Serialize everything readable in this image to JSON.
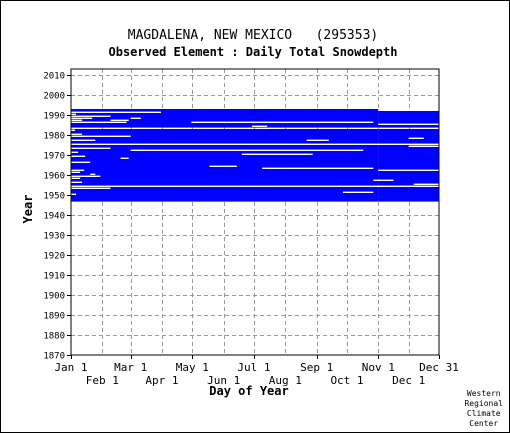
{
  "chart_data": {
    "type": "heatmap",
    "title": "MAGDALENA, NEW MEXICO   (295353)",
    "subtitle": "Observed Element : Daily Total Snowdepth",
    "xlabel": "Day of Year",
    "ylabel": "Year",
    "x_ticks_top_row": [
      "Jan 1",
      "Mar 1",
      "May 1",
      "Jul 1",
      "Sep 1",
      "Nov 1",
      "Dec 31"
    ],
    "x_ticks_bottom_row": [
      "Feb 1",
      "Apr 1",
      "Jun 1",
      "Aug 1",
      "Oct 1",
      "Dec 1"
    ],
    "x_tick_days_top_row": [
      1,
      60,
      121,
      182,
      244,
      305,
      365
    ],
    "x_tick_days_bottom_row": [
      32,
      91,
      152,
      213,
      274,
      335
    ],
    "y_ticks": [
      1870,
      1880,
      1890,
      1900,
      1910,
      1920,
      1930,
      1940,
      1950,
      1960,
      1970,
      1980,
      1990,
      2000,
      2010
    ],
    "xlim": [
      1,
      365
    ],
    "ylim": [
      1870,
      2013
    ],
    "grid": true,
    "data_color": "#0000ff",
    "data_coverage": {
      "year_start": 1947,
      "year_end": 1992,
      "year_end_late_season": 1991,
      "late_season_from_day": 305
    },
    "missing_years_full": [
      1983,
      1975,
      1954
    ],
    "missing_segments": [
      {
        "year": 1991,
        "from": 1,
        "to": 90
      },
      {
        "year": 1990,
        "from": 1,
        "to": 6
      },
      {
        "year": 1989,
        "from": 1,
        "to": 40
      },
      {
        "year": 1988,
        "from": 1,
        "to": 22
      },
      {
        "year": 1988,
        "from": 60,
        "to": 70
      },
      {
        "year": 1987,
        "from": 1,
        "to": 12
      },
      {
        "year": 1987,
        "from": 40,
        "to": 58
      },
      {
        "year": 1986,
        "from": 1,
        "to": 56
      },
      {
        "year": 1986,
        "from": 120,
        "to": 300
      },
      {
        "year": 1985,
        "from": 305,
        "to": 365
      },
      {
        "year": 1984,
        "from": 180,
        "to": 195
      },
      {
        "year": 1982,
        "from": 1,
        "to": 5
      },
      {
        "year": 1980,
        "from": 1,
        "to": 12
      },
      {
        "year": 1979,
        "from": 1,
        "to": 60
      },
      {
        "year": 1978,
        "from": 335,
        "to": 350
      },
      {
        "year": 1977,
        "from": 1,
        "to": 25
      },
      {
        "year": 1977,
        "from": 234,
        "to": 256
      },
      {
        "year": 1974,
        "from": 335,
        "to": 365
      },
      {
        "year": 1973,
        "from": 1,
        "to": 40
      },
      {
        "year": 1972,
        "from": 60,
        "to": 290
      },
      {
        "year": 1971,
        "from": 1,
        "to": 8
      },
      {
        "year": 1970,
        "from": 170,
        "to": 240
      },
      {
        "year": 1969,
        "from": 1,
        "to": 15
      },
      {
        "year": 1968,
        "from": 50,
        "to": 58
      },
      {
        "year": 1966,
        "from": 1,
        "to": 20
      },
      {
        "year": 1964,
        "from": 138,
        "to": 165
      },
      {
        "year": 1963,
        "from": 190,
        "to": 300
      },
      {
        "year": 1962,
        "from": 1,
        "to": 14
      },
      {
        "year": 1962,
        "from": 305,
        "to": 365
      },
      {
        "year": 1961,
        "from": 1,
        "to": 10
      },
      {
        "year": 1960,
        "from": 20,
        "to": 25
      },
      {
        "year": 1959,
        "from": 1,
        "to": 30
      },
      {
        "year": 1958,
        "from": 1,
        "to": 10
      },
      {
        "year": 1957,
        "from": 300,
        "to": 320
      },
      {
        "year": 1956,
        "from": 1,
        "to": 12
      },
      {
        "year": 1955,
        "from": 340,
        "to": 365
      },
      {
        "year": 1953,
        "from": 1,
        "to": 40
      },
      {
        "year": 1951,
        "from": 270,
        "to": 300
      },
      {
        "year": 1950,
        "from": 1,
        "to": 6
      }
    ]
  },
  "credit": {
    "line1": "Western",
    "line2": "Regional",
    "line3": "Climate",
    "line4": "Center"
  }
}
